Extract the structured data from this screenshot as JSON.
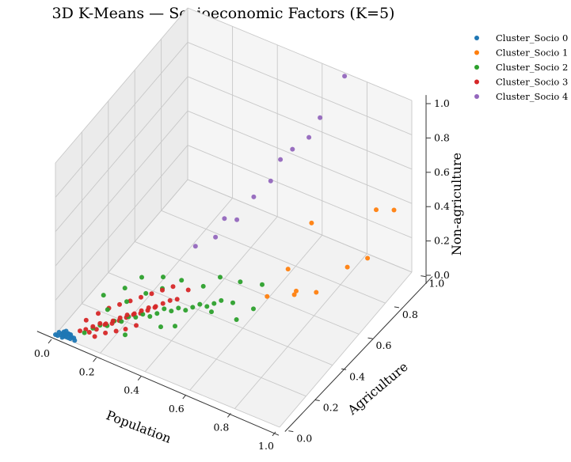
{
  "chart_data": {
    "type": "scatter",
    "projection": "3d",
    "title": "3D K-Means — Socioeconomic Factors (K=5)",
    "xlabel": "Population",
    "ylabel": "Agriculture",
    "zlabel": "Non-agriculture",
    "xlim": [
      0,
      1
    ],
    "ylim": [
      0,
      1
    ],
    "zlim": [
      0,
      1
    ],
    "xticks": [
      "0.0",
      "0.2",
      "0.4",
      "0.6",
      "0.8",
      "1.0"
    ],
    "yticks": [
      "0.0",
      "0.2",
      "0.4",
      "0.6",
      "0.8",
      "1.0"
    ],
    "zticks": [
      "0.0",
      "0.2",
      "0.4",
      "0.6",
      "0.8",
      "1.0"
    ],
    "grid": true,
    "legend_position": "top-right",
    "series": [
      {
        "name": "Cluster_Socio 0",
        "color": "#1f77b4",
        "points": [
          [
            0.0,
            0.0,
            0.0
          ],
          [
            0.01,
            0.0,
            0.0
          ],
          [
            0.02,
            0.01,
            0.0
          ],
          [
            0.03,
            0.01,
            0.0
          ],
          [
            0.04,
            0.01,
            0.0
          ],
          [
            0.03,
            0.02,
            0.0
          ],
          [
            0.02,
            0.02,
            0.0
          ],
          [
            0.05,
            0.01,
            0.0
          ],
          [
            0.06,
            0.02,
            0.0
          ],
          [
            0.04,
            0.03,
            0.0
          ],
          [
            0.01,
            0.01,
            0.01
          ],
          [
            0.03,
            0.0,
            0.0
          ],
          [
            0.05,
            0.02,
            0.01
          ],
          [
            0.07,
            0.02,
            0.0
          ],
          [
            0.02,
            0.03,
            0.0
          ],
          [
            0.06,
            0.01,
            0.0
          ],
          [
            0.04,
            0.02,
            0.01
          ],
          [
            0.08,
            0.01,
            0.0
          ],
          [
            0.03,
            0.03,
            0.01
          ],
          [
            0.05,
            0.03,
            0.0
          ]
        ]
      },
      {
        "name": "Cluster_Socio 1",
        "color": "#ff7f0e",
        "points": [
          [
            0.62,
            0.55,
            0.06
          ],
          [
            0.7,
            0.62,
            0.05
          ],
          [
            0.72,
            0.6,
            0.1
          ],
          [
            0.78,
            0.65,
            0.08
          ],
          [
            0.66,
            0.64,
            0.16
          ],
          [
            0.86,
            0.75,
            0.18
          ],
          [
            0.7,
            0.75,
            0.35
          ],
          [
            0.95,
            0.75,
            0.28
          ],
          [
            0.9,
            0.9,
            0.4
          ],
          [
            0.95,
            0.95,
            0.38
          ]
        ]
      },
      {
        "name": "Cluster_Socio 2",
        "color": "#2ca02c",
        "points": [
          [
            0.1,
            0.05,
            0.02
          ],
          [
            0.12,
            0.08,
            0.03
          ],
          [
            0.14,
            0.1,
            0.04
          ],
          [
            0.16,
            0.12,
            0.03
          ],
          [
            0.18,
            0.14,
            0.05
          ],
          [
            0.2,
            0.16,
            0.04
          ],
          [
            0.22,
            0.18,
            0.06
          ],
          [
            0.24,
            0.2,
            0.05
          ],
          [
            0.26,
            0.22,
            0.06
          ],
          [
            0.28,
            0.24,
            0.04
          ],
          [
            0.3,
            0.26,
            0.05
          ],
          [
            0.32,
            0.28,
            0.07
          ],
          [
            0.34,
            0.3,
            0.05
          ],
          [
            0.36,
            0.32,
            0.06
          ],
          [
            0.38,
            0.34,
            0.04
          ],
          [
            0.4,
            0.36,
            0.05
          ],
          [
            0.42,
            0.38,
            0.06
          ],
          [
            0.44,
            0.4,
            0.04
          ],
          [
            0.46,
            0.42,
            0.05
          ],
          [
            0.48,
            0.44,
            0.06
          ],
          [
            0.15,
            0.14,
            0.1
          ],
          [
            0.2,
            0.2,
            0.12
          ],
          [
            0.25,
            0.26,
            0.14
          ],
          [
            0.3,
            0.3,
            0.16
          ],
          [
            0.35,
            0.36,
            0.18
          ],
          [
            0.12,
            0.16,
            0.15
          ],
          [
            0.18,
            0.22,
            0.17
          ],
          [
            0.22,
            0.28,
            0.2
          ],
          [
            0.28,
            0.34,
            0.18
          ],
          [
            0.4,
            0.44,
            0.1
          ],
          [
            0.46,
            0.4,
            0.02
          ],
          [
            0.52,
            0.46,
            0.05
          ],
          [
            0.56,
            0.42,
            0.01
          ],
          [
            0.6,
            0.48,
            0.04
          ],
          [
            0.58,
            0.58,
            0.08
          ],
          [
            0.44,
            0.5,
            0.12
          ],
          [
            0.5,
            0.55,
            0.08
          ],
          [
            0.24,
            0.12,
            0.02
          ],
          [
            0.34,
            0.22,
            0.03
          ],
          [
            0.38,
            0.26,
            0.02
          ]
        ]
      },
      {
        "name": "Cluster_Socio 3",
        "color": "#d62728",
        "points": [
          [
            0.08,
            0.05,
            0.02
          ],
          [
            0.1,
            0.06,
            0.03
          ],
          [
            0.12,
            0.08,
            0.04
          ],
          [
            0.14,
            0.1,
            0.05
          ],
          [
            0.16,
            0.11,
            0.05
          ],
          [
            0.18,
            0.13,
            0.06
          ],
          [
            0.2,
            0.15,
            0.07
          ],
          [
            0.22,
            0.17,
            0.08
          ],
          [
            0.24,
            0.19,
            0.08
          ],
          [
            0.26,
            0.21,
            0.09
          ],
          [
            0.28,
            0.23,
            0.1
          ],
          [
            0.3,
            0.25,
            0.1
          ],
          [
            0.32,
            0.27,
            0.11
          ],
          [
            0.34,
            0.29,
            0.12
          ],
          [
            0.36,
            0.31,
            0.12
          ],
          [
            0.11,
            0.07,
            0.01
          ],
          [
            0.13,
            0.09,
            0.02
          ],
          [
            0.15,
            0.12,
            0.03
          ],
          [
            0.17,
            0.14,
            0.03
          ],
          [
            0.19,
            0.16,
            0.04
          ],
          [
            0.21,
            0.18,
            0.05
          ],
          [
            0.23,
            0.2,
            0.06
          ],
          [
            0.25,
            0.22,
            0.06
          ],
          [
            0.27,
            0.24,
            0.07
          ],
          [
            0.29,
            0.26,
            0.08
          ],
          [
            0.09,
            0.08,
            0.06
          ],
          [
            0.12,
            0.12,
            0.08
          ],
          [
            0.15,
            0.15,
            0.1
          ],
          [
            0.18,
            0.18,
            0.11
          ],
          [
            0.21,
            0.21,
            0.12
          ],
          [
            0.24,
            0.24,
            0.13
          ],
          [
            0.27,
            0.27,
            0.14
          ],
          [
            0.3,
            0.3,
            0.15
          ],
          [
            0.33,
            0.33,
            0.16
          ],
          [
            0.38,
            0.36,
            0.14
          ],
          [
            0.14,
            0.06,
            0.01
          ],
          [
            0.17,
            0.09,
            0.02
          ],
          [
            0.2,
            0.12,
            0.02
          ],
          [
            0.23,
            0.14,
            0.03
          ],
          [
            0.26,
            0.17,
            0.04
          ]
        ]
      },
      {
        "name": "Cluster_Socio 4",
        "color": "#9467bd",
        "points": [
          [
            0.3,
            0.55,
            0.18
          ],
          [
            0.36,
            0.6,
            0.22
          ],
          [
            0.42,
            0.66,
            0.3
          ],
          [
            0.4,
            0.6,
            0.35
          ],
          [
            0.46,
            0.72,
            0.4
          ],
          [
            0.5,
            0.78,
            0.46
          ],
          [
            0.52,
            0.82,
            0.56
          ],
          [
            0.55,
            0.86,
            0.6
          ],
          [
            0.6,
            0.9,
            0.66
          ],
          [
            0.62,
            0.95,
            0.74
          ],
          [
            0.7,
            1.0,
            0.98
          ]
        ]
      }
    ]
  }
}
